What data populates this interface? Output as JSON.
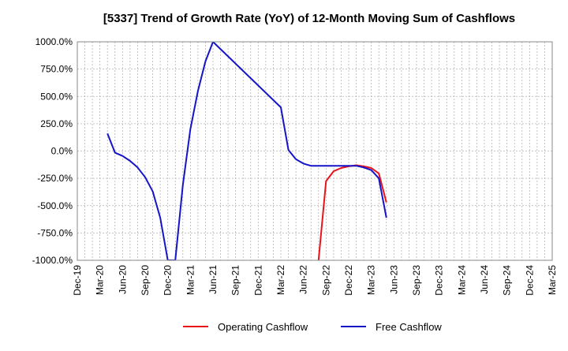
{
  "chart_data": {
    "type": "line",
    "title": "[5337]  Trend of Growth Rate (YoY) of 12-Month Moving Sum of Cashflows",
    "xlabel": "",
    "ylabel": "",
    "grid": true,
    "legend_position": "bottom",
    "ylim": [
      -1000,
      1000
    ],
    "y_ticks": [
      1000,
      750,
      500,
      250,
      0,
      -250,
      -500,
      -750,
      -1000
    ],
    "y_tick_labels": [
      "1000.0%",
      "750.0%",
      "500.0%",
      "250.0%",
      "0.0%",
      "-250.0%",
      "-500.0%",
      "-750.0%",
      "-1000.0%"
    ],
    "x_ticks": [
      "Dec-19",
      "Mar-20",
      "Jun-20",
      "Sep-20",
      "Dec-20",
      "Mar-21",
      "Jun-21",
      "Sep-21",
      "Dec-21",
      "Mar-22",
      "Jun-22",
      "Sep-22",
      "Dec-22",
      "Mar-23",
      "Jun-23",
      "Sep-23",
      "Dec-23",
      "Mar-24",
      "Jun-24",
      "Sep-24",
      "Dec-24",
      "Mar-25"
    ],
    "series": [
      {
        "name": "Operating Cashflow",
        "color": "#e8141b",
        "points": [
          {
            "x": "Aug-22",
            "y": -1000
          },
          {
            "x": "Sep-22",
            "y": -275
          },
          {
            "x": "Oct-22",
            "y": -185
          },
          {
            "x": "Nov-22",
            "y": -155
          },
          {
            "x": "Dec-22",
            "y": -140
          },
          {
            "x": "Jan-23",
            "y": -130
          },
          {
            "x": "Feb-23",
            "y": -140
          },
          {
            "x": "Mar-23",
            "y": -155
          },
          {
            "x": "Apr-23",
            "y": -205
          },
          {
            "x": "May-23",
            "y": -470
          }
        ]
      },
      {
        "name": "Free Cashflow",
        "color": "#1414c8",
        "points": [
          {
            "x": "Apr-20",
            "y": 160
          },
          {
            "x": "May-20",
            "y": -15
          },
          {
            "x": "Jun-20",
            "y": -45
          },
          {
            "x": "Jul-20",
            "y": -90
          },
          {
            "x": "Aug-20",
            "y": -150
          },
          {
            "x": "Sep-20",
            "y": -240
          },
          {
            "x": "Oct-20",
            "y": -370
          },
          {
            "x": "Nov-20",
            "y": -610
          },
          {
            "x": "Dec-20",
            "y": -1000
          },
          {
            "x": "Jan-21",
            "y": -1000
          },
          {
            "x": "Feb-21",
            "y": -310
          },
          {
            "x": "Mar-21",
            "y": 200
          },
          {
            "x": "Apr-21",
            "y": 550
          },
          {
            "x": "May-21",
            "y": 820
          },
          {
            "x": "Jun-21",
            "y": 1000
          },
          {
            "x": "Mar-22",
            "y": 400
          },
          {
            "x": "Apr-22",
            "y": 10
          },
          {
            "x": "May-22",
            "y": -75
          },
          {
            "x": "Jun-22",
            "y": -115
          },
          {
            "x": "Jul-22",
            "y": -135
          },
          {
            "x": "Aug-22",
            "y": -135
          },
          {
            "x": "Sep-22",
            "y": -135
          },
          {
            "x": "Oct-22",
            "y": -135
          },
          {
            "x": "Nov-22",
            "y": -135
          },
          {
            "x": "Dec-22",
            "y": -135
          },
          {
            "x": "Jan-23",
            "y": -135
          },
          {
            "x": "Feb-23",
            "y": -150
          },
          {
            "x": "Mar-23",
            "y": -175
          },
          {
            "x": "Apr-23",
            "y": -250
          },
          {
            "x": "May-23",
            "y": -610
          }
        ]
      }
    ]
  }
}
